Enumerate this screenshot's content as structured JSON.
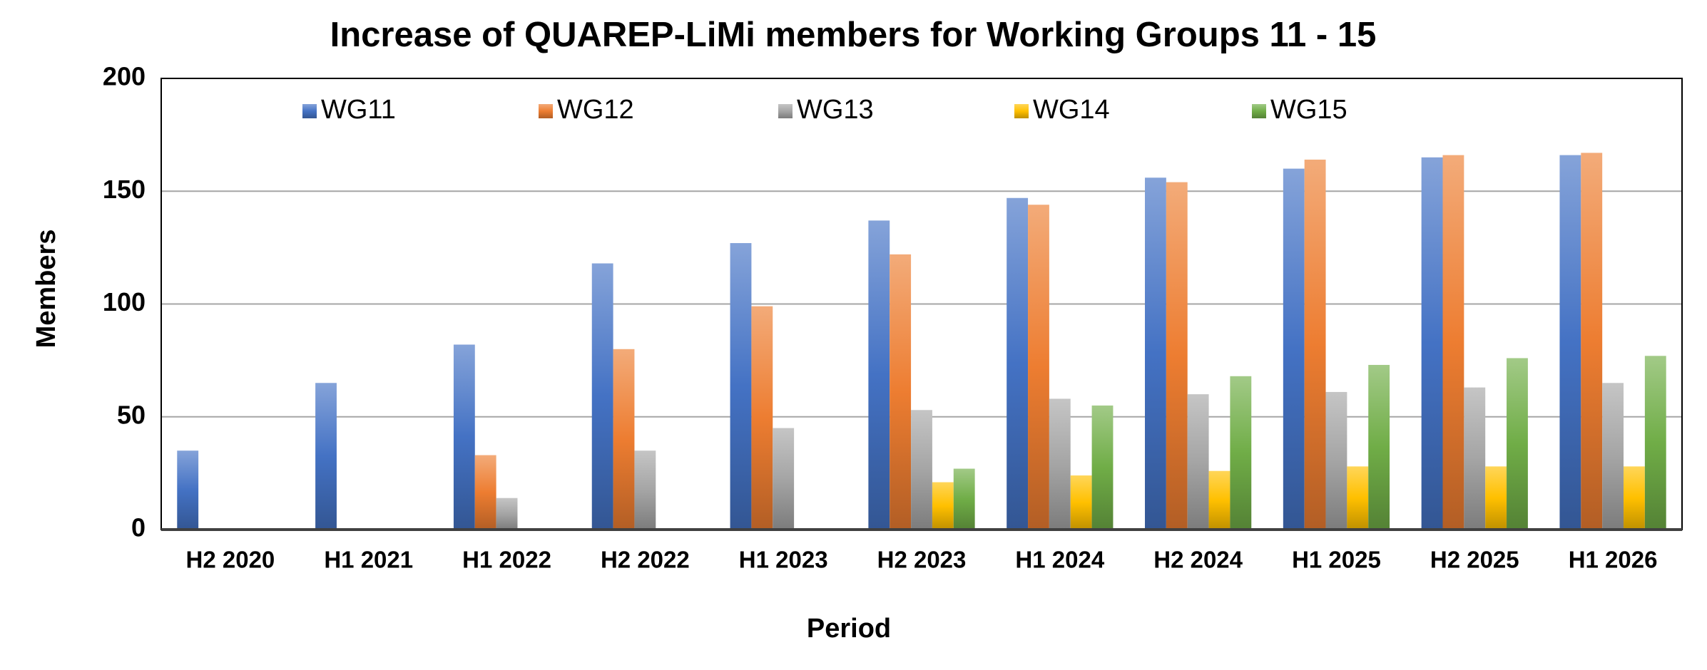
{
  "chart_data": {
    "type": "bar",
    "title": "Increase of QUAREP-LiMi members for Working Groups 11 - 15",
    "x_label": "Period",
    "y_label": "Members",
    "categories": [
      "H2 2020",
      "H1 2021",
      "H1 2022",
      "H2 2022",
      "H1 2023",
      "H2 2023",
      "H1 2024",
      "H2 2024",
      "H1 2025",
      "H2 2025",
      "H1 2026"
    ],
    "series": [
      {
        "name": "WG11",
        "color": "#4472c4",
        "values": [
          35,
          65,
          82,
          118,
          127,
          137,
          147,
          156,
          160,
          165,
          166
        ]
      },
      {
        "name": "WG12",
        "color": "#ed7d31",
        "values": [
          null,
          null,
          33,
          80,
          99,
          122,
          144,
          154,
          164,
          166,
          167
        ]
      },
      {
        "name": "WG13",
        "color": "#a5a5a5",
        "values": [
          null,
          null,
          14,
          35,
          45,
          53,
          58,
          60,
          61,
          63,
          65
        ]
      },
      {
        "name": "WG14",
        "color": "#ffc000",
        "values": [
          null,
          null,
          null,
          null,
          null,
          21,
          24,
          26,
          28,
          28,
          28
        ]
      },
      {
        "name": "WG15",
        "color": "#70ad47",
        "values": [
          null,
          null,
          null,
          null,
          null,
          27,
          55,
          68,
          73,
          76,
          77
        ]
      }
    ],
    "ylim": [
      0,
      200
    ],
    "yticks": [
      0,
      50,
      100,
      150,
      200
    ],
    "grid": true,
    "legend": "top"
  }
}
